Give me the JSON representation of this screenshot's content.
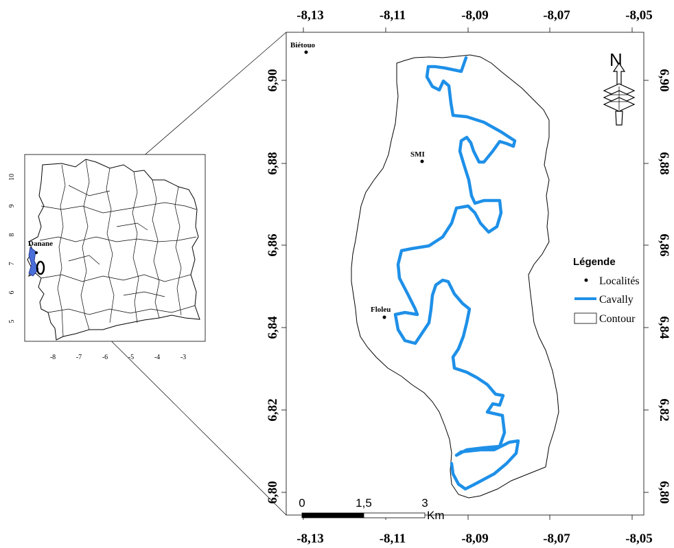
{
  "main_map": {
    "x_ticks": [
      "-8,13",
      "-8,11",
      "-8,09",
      "-8,07",
      "-8,05"
    ],
    "y_ticks": [
      "6,90",
      "6,88",
      "6,86",
      "6,84",
      "6,82",
      "6,80"
    ],
    "localities": [
      {
        "name": "Biétouo",
        "lon": -8.13,
        "lat": 6.906
      },
      {
        "name": "SMI",
        "lon": -8.102,
        "lat": 6.881
      },
      {
        "name": "Floleu",
        "lon": -8.11,
        "lat": 6.843
      }
    ],
    "river_color": "#1e90e8"
  },
  "legend": {
    "title": "Légende",
    "items": [
      {
        "symbol": "point",
        "label": "Localités"
      },
      {
        "symbol": "line",
        "label": "Cavally"
      },
      {
        "symbol": "polygon",
        "label": "Contour"
      }
    ]
  },
  "scale_bar": {
    "labels": [
      "0",
      "1,5",
      "3"
    ],
    "unit": "Km"
  },
  "north_arrow": {
    "label": "N",
    "icon": "north-arrow-icon"
  },
  "inset_map": {
    "x_ticks": [
      "-8",
      "-7",
      "-6",
      "-5",
      "-4",
      "-3"
    ],
    "y_ticks": [
      "10",
      "9",
      "8",
      "7",
      "6",
      "5"
    ],
    "city_label": "Danane"
  }
}
